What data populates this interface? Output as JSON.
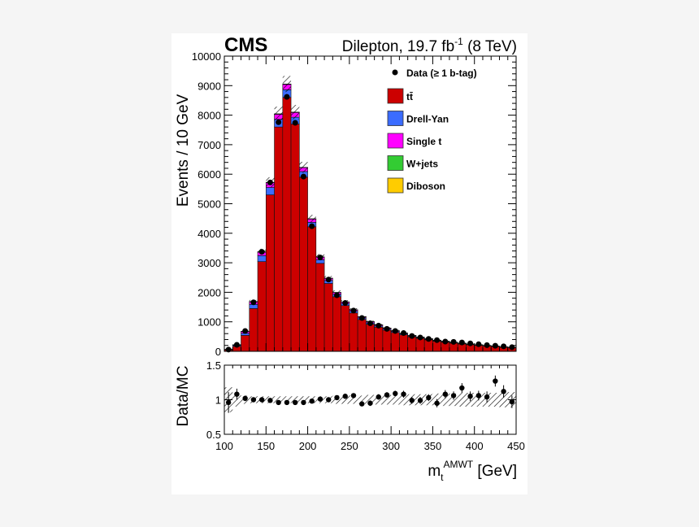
{
  "chart_data": {
    "type": "bar",
    "experiment": "CMS",
    "title": "Dilepton, 19.7 fb",
    "title_sup": "-1",
    "title_tail": " (8 TeV)",
    "xlabel_main": "m",
    "xlabel_sub": "t",
    "xlabel_sup": "AMWT",
    "xlabel_unit": " [GeV]",
    "ylabel": "Events / 10 GeV",
    "ratio_ylabel": "Data/MC",
    "xlim": [
      100,
      450
    ],
    "ylim": [
      0,
      10000
    ],
    "ratio_ylim": [
      0.5,
      1.5
    ],
    "xticks": [
      "100",
      "150",
      "200",
      "250",
      "300",
      "350",
      "400",
      "450"
    ],
    "yticks": [
      "0",
      "1000",
      "2000",
      "3000",
      "4000",
      "5000",
      "6000",
      "7000",
      "8000",
      "9000",
      "10000"
    ],
    "ratio_yticks": [
      "0.5",
      "1",
      "1.5"
    ],
    "bin_edges": [
      100,
      110,
      120,
      130,
      140,
      150,
      160,
      170,
      180,
      190,
      200,
      210,
      220,
      230,
      240,
      250,
      260,
      270,
      280,
      290,
      300,
      310,
      320,
      330,
      340,
      350,
      360,
      370,
      380,
      390,
      400,
      410,
      420,
      430,
      440,
      450
    ],
    "series": [
      {
        "name": "tt̄",
        "color": "#cc0000",
        "values": [
          50,
          170,
          540,
          1450,
          3040,
          5300,
          7600,
          8600,
          7700,
          5900,
          4220,
          2980,
          2300,
          1850,
          1550,
          1300,
          1080,
          920,
          820,
          720,
          640,
          560,
          490,
          440,
          390,
          340,
          310,
          280,
          250,
          225,
          200,
          180,
          160,
          140,
          125
        ]
      },
      {
        "name": "Drell-Yan",
        "color": "#3b6cff",
        "values": [
          10,
          30,
          70,
          140,
          200,
          250,
          260,
          260,
          230,
          190,
          150,
          120,
          100,
          80,
          70,
          60,
          50,
          45,
          40,
          35,
          30,
          28,
          25,
          22,
          20,
          18,
          16,
          15,
          14,
          12,
          11,
          10,
          9,
          8,
          7
        ]
      },
      {
        "name": "Single t",
        "color": "#ff00ff",
        "values": [
          5,
          20,
          60,
          90,
          120,
          160,
          170,
          180,
          160,
          130,
          110,
          90,
          70,
          60,
          50,
          45,
          40,
          35,
          32,
          28,
          25,
          22,
          20,
          18,
          16,
          15,
          14,
          13,
          12,
          11,
          10,
          9,
          8,
          7,
          6
        ]
      },
      {
        "name": "W+jets",
        "color": "#33cc33",
        "values": [
          1,
          2,
          4,
          6,
          8,
          10,
          10,
          10,
          9,
          8,
          7,
          6,
          5,
          4,
          4,
          3,
          3,
          3,
          2,
          2,
          2,
          2,
          2,
          1,
          1,
          1,
          1,
          1,
          1,
          1,
          1,
          1,
          1,
          1,
          1
        ]
      },
      {
        "name": "Diboson",
        "color": "#ffcc00",
        "values": [
          1,
          2,
          3,
          4,
          5,
          6,
          6,
          6,
          5,
          5,
          4,
          3,
          3,
          2,
          2,
          2,
          2,
          1,
          1,
          1,
          1,
          1,
          1,
          1,
          1,
          1,
          1,
          1,
          1,
          1,
          1,
          1,
          1,
          1,
          1
        ]
      }
    ],
    "data_name": "Data (≥ 1 b-tag)",
    "data_values": [
      60,
      220,
      690,
      1660,
      3370,
      5720,
      7760,
      8620,
      7740,
      5920,
      4240,
      3180,
      2430,
      1900,
      1640,
      1380,
      1130,
      950,
      870,
      760,
      690,
      620,
      520,
      470,
      420,
      380,
      330,
      320,
      300,
      270,
      240,
      210,
      190,
      170,
      140
    ],
    "ratio_values": [
      0.96,
      1.08,
      1.02,
      1.0,
      1.0,
      0.99,
      0.96,
      0.96,
      0.96,
      0.96,
      0.98,
      1.01,
      1.0,
      1.03,
      1.05,
      1.06,
      0.94,
      0.95,
      1.04,
      1.07,
      1.09,
      1.08,
      0.99,
      0.99,
      1.03,
      0.95,
      1.08,
      1.06,
      1.17,
      1.05,
      1.06,
      1.04,
      1.27,
      1.12,
      0.97
    ],
    "ratio_errors": [
      0.15,
      0.08,
      0.04,
      0.03,
      0.02,
      0.02,
      0.02,
      0.02,
      0.02,
      0.02,
      0.02,
      0.02,
      0.02,
      0.03,
      0.03,
      0.03,
      0.03,
      0.04,
      0.04,
      0.04,
      0.04,
      0.05,
      0.05,
      0.05,
      0.05,
      0.06,
      0.06,
      0.06,
      0.07,
      0.07,
      0.07,
      0.08,
      0.08,
      0.09,
      0.09
    ],
    "uncertainty_band": [
      0.18,
      0.1,
      0.06,
      0.05,
      0.05,
      0.05,
      0.05,
      0.05,
      0.05,
      0.05,
      0.05,
      0.05,
      0.05,
      0.06,
      0.06,
      0.06,
      0.06,
      0.07,
      0.07,
      0.07,
      0.07,
      0.08,
      0.08,
      0.08,
      0.08,
      0.09,
      0.09,
      0.09,
      0.1,
      0.1,
      0.1,
      0.1,
      0.1,
      0.11,
      0.11
    ]
  }
}
